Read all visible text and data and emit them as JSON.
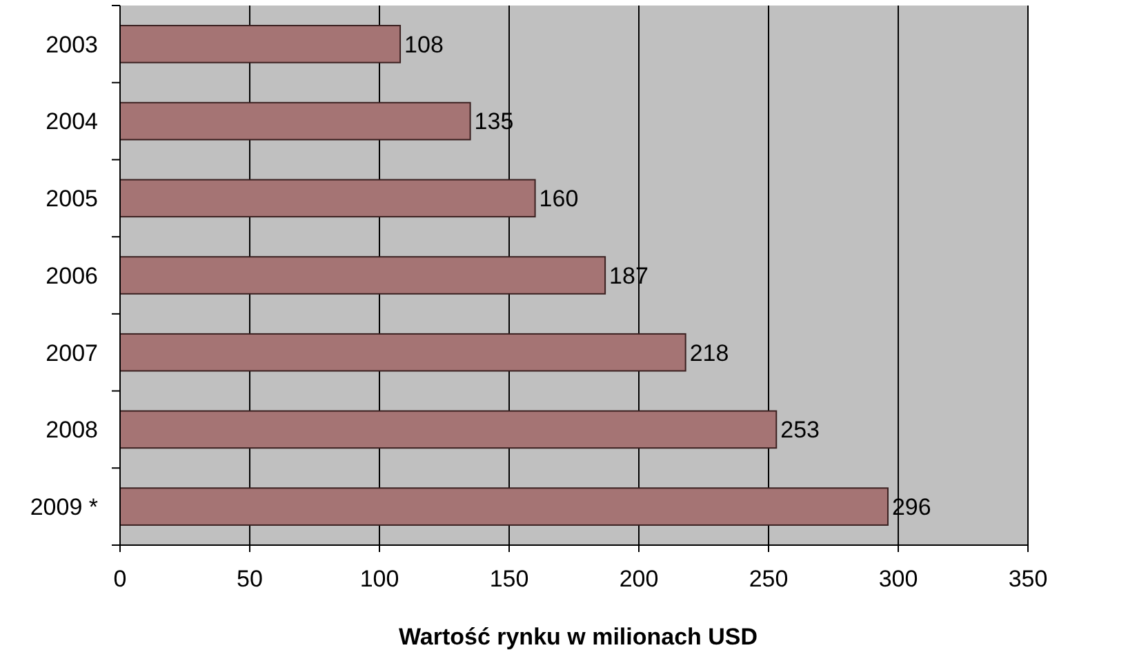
{
  "chart_data": {
    "type": "bar",
    "orientation": "horizontal",
    "xlabel": "Wartość rynku w milionach USD",
    "categories": [
      "2003",
      "2004",
      "2005",
      "2006",
      "2007",
      "2008",
      "2009 *"
    ],
    "values": [
      108,
      135,
      160,
      187,
      218,
      253,
      296
    ],
    "color": "#a57474",
    "xlim": [
      0,
      350
    ],
    "xticks": [
      0,
      50,
      100,
      150,
      200,
      250,
      300,
      350
    ],
    "grid": "x",
    "data_labels": true
  }
}
